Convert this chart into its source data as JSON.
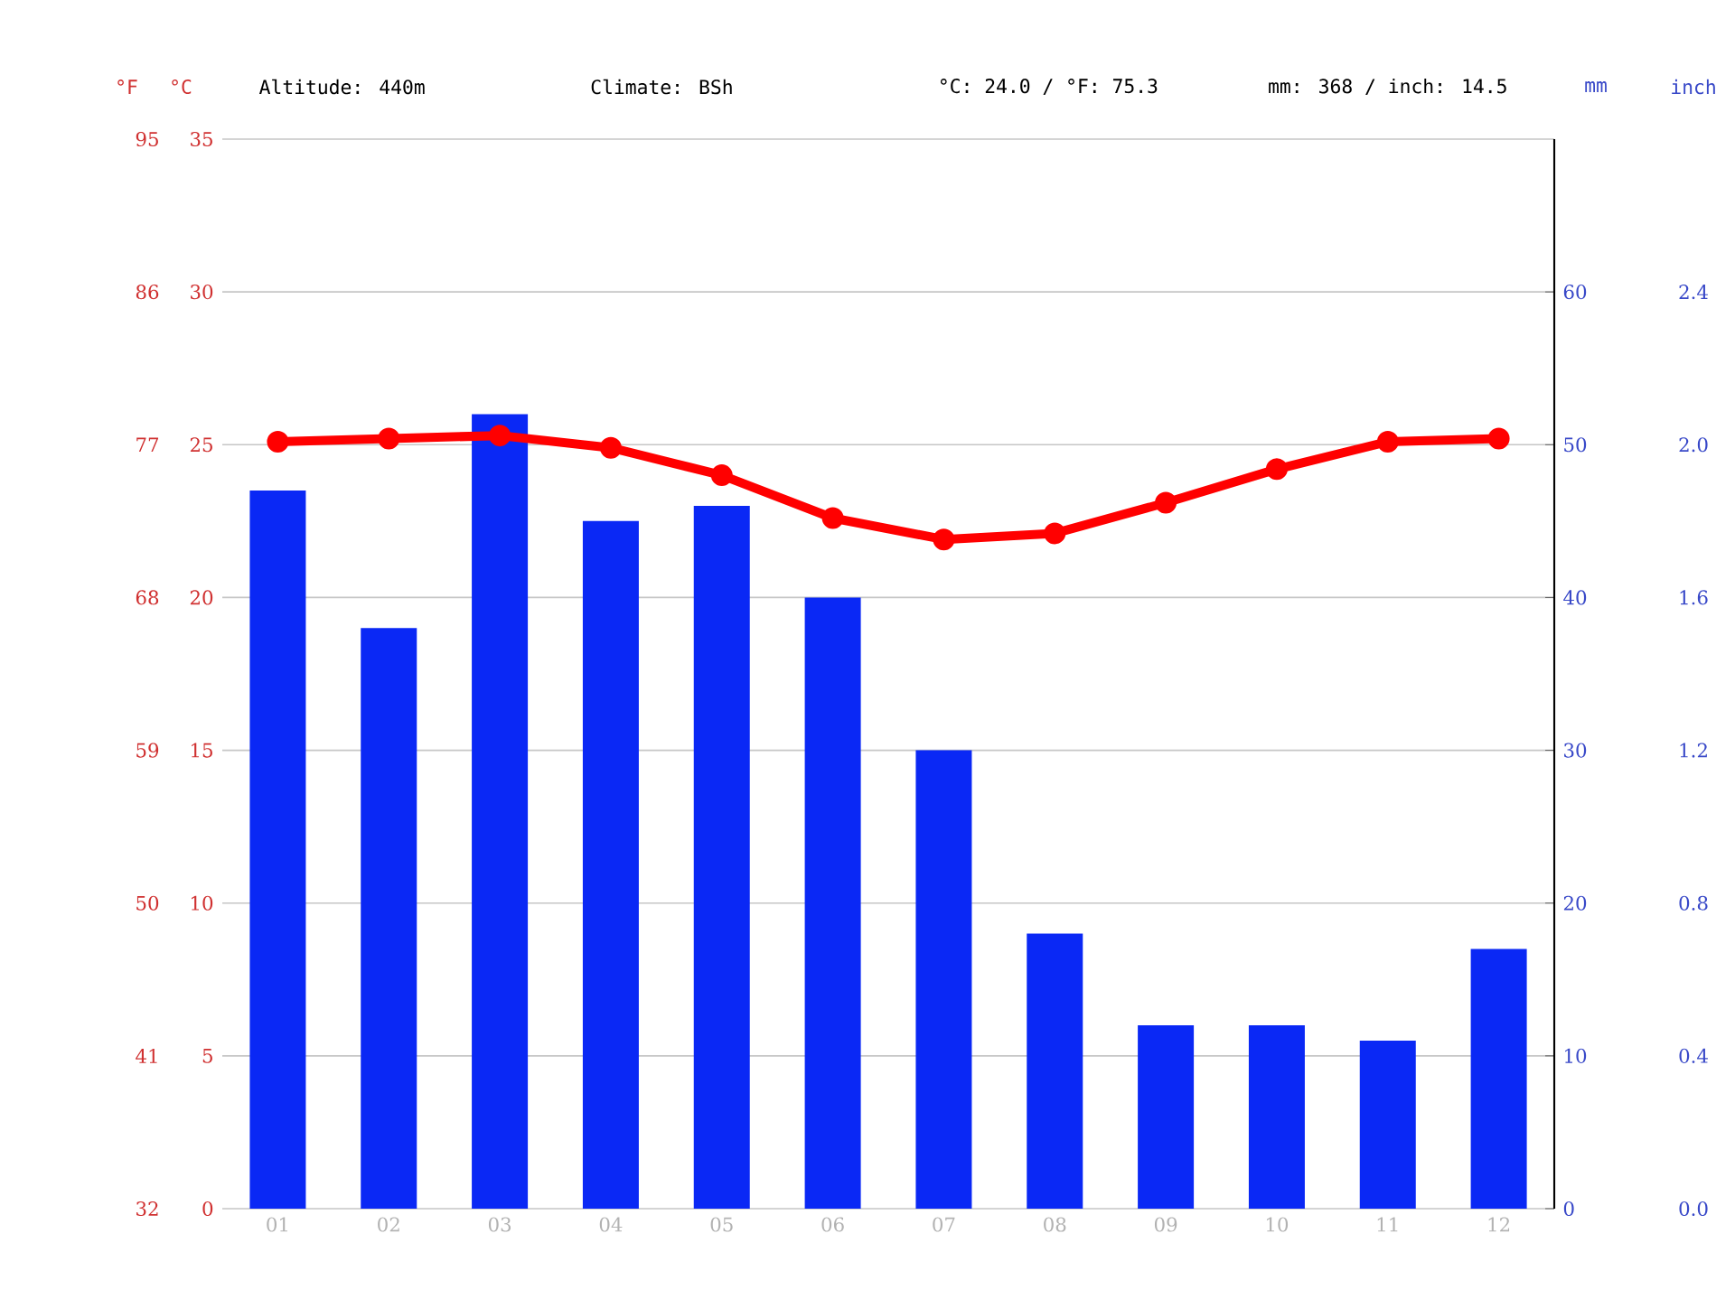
{
  "chart_data": {
    "type": "bar",
    "categories": [
      "01",
      "02",
      "03",
      "04",
      "05",
      "06",
      "07",
      "08",
      "09",
      "10",
      "11",
      "12"
    ],
    "series": [
      {
        "axis": "y2",
        "color": "#0a28f5",
        "values": [
          47,
          38,
          52,
          45,
          46,
          40,
          30,
          18,
          12,
          12,
          11,
          17
        ]
      },
      {
        "type": "line",
        "axis": "y",
        "color": "#ff0000",
        "marker": "circle",
        "values": [
          25.1,
          25.2,
          25.3,
          24.9,
          24.0,
          22.6,
          21.9,
          22.1,
          23.1,
          24.2,
          25.1,
          25.2
        ]
      }
    ],
    "ylabel": "°C",
    "ylim": [
      0,
      35
    ],
    "yticks": [
      0,
      5,
      10,
      15,
      20,
      25,
      30,
      35
    ],
    "y2label": "mm",
    "y2lim": [
      0,
      70
    ],
    "y2ticks": [
      0,
      10,
      20,
      30,
      40,
      50,
      60
    ],
    "y3label": "°F",
    "y3lim": [
      32,
      95
    ],
    "y3ticks": [
      32,
      41,
      50,
      59,
      68,
      77,
      86,
      95
    ],
    "grid": "y",
    "annotations": [
      "Altitude: 440m",
      "Climate: BSh",
      "°C: 24.0 / °F: 75.3",
      "mm: 368 / inch: 14.5",
      "inch",
      "0.0",
      "0.4",
      "0.8",
      "1.2",
      "1.6",
      "2.0",
      "2.4"
    ]
  }
}
